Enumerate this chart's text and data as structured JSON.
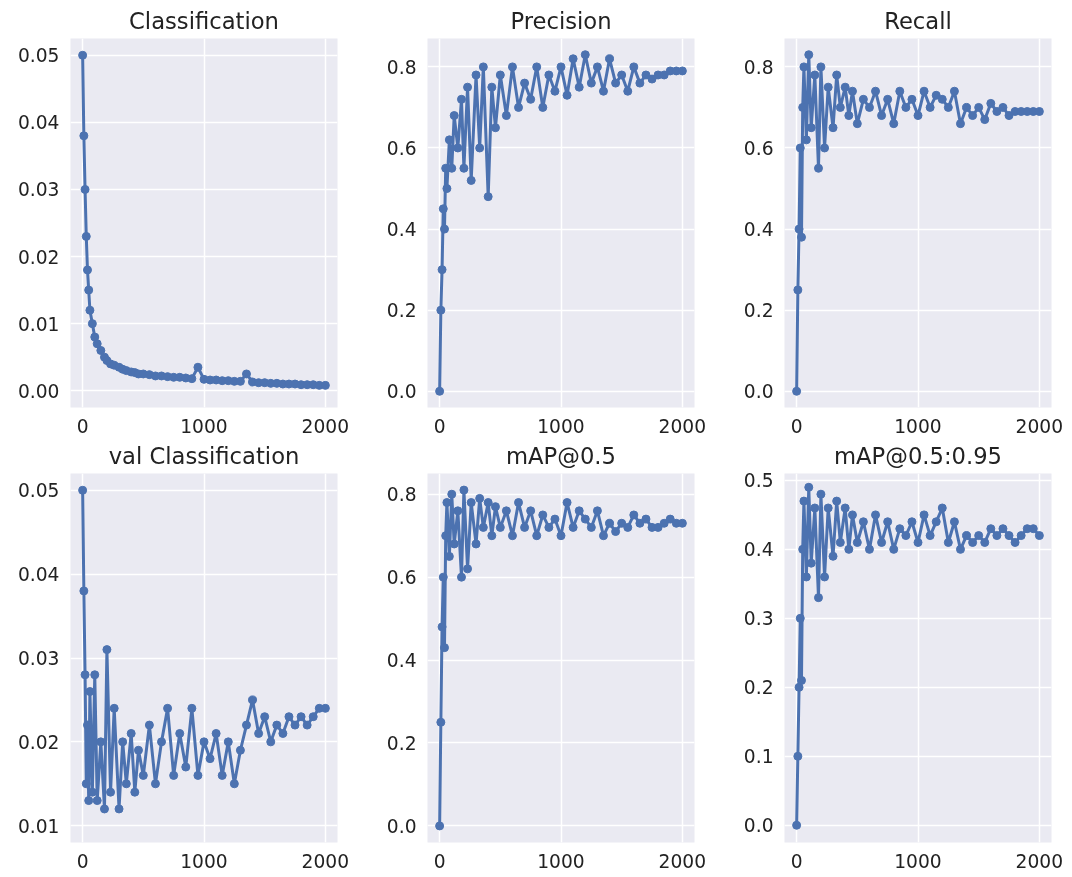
{
  "chart_data": [
    {
      "type": "line",
      "title": "Classification",
      "color": "#4c72b0",
      "marker": "circle",
      "line_style": "solid",
      "grid": true,
      "xlim": [
        -100,
        2100
      ],
      "xticks": [
        0,
        1000,
        2000
      ],
      "ylim": [
        -0.0025,
        0.0525
      ],
      "yticks": [
        {
          "value": 0,
          "label": "0.00"
        },
        {
          "value": 0.01,
          "label": "0.01"
        },
        {
          "value": 0.02,
          "label": "0.02"
        },
        {
          "value": 0.03,
          "label": "0.03"
        },
        {
          "value": 0.04,
          "label": "0.04"
        },
        {
          "value": 0.05,
          "label": "0.05"
        }
      ],
      "x": [
        0,
        10,
        20,
        30,
        40,
        50,
        60,
        80,
        100,
        120,
        150,
        180,
        200,
        230,
        260,
        300,
        330,
        360,
        400,
        430,
        460,
        500,
        550,
        600,
        650,
        700,
        750,
        800,
        850,
        900,
        950,
        1000,
        1050,
        1100,
        1150,
        1200,
        1250,
        1300,
        1350,
        1400,
        1450,
        1500,
        1550,
        1600,
        1650,
        1700,
        1750,
        1800,
        1850,
        1900,
        1950,
        2000
      ],
      "values": [
        0.05,
        0.038,
        0.03,
        0.023,
        0.018,
        0.015,
        0.012,
        0.01,
        0.008,
        0.007,
        0.006,
        0.005,
        0.0045,
        0.004,
        0.0038,
        0.0035,
        0.0032,
        0.003,
        0.0028,
        0.0027,
        0.0025,
        0.0025,
        0.0024,
        0.0022,
        0.0022,
        0.0021,
        0.002,
        0.002,
        0.0019,
        0.0018,
        0.0035,
        0.0017,
        0.0016,
        0.0016,
        0.0015,
        0.0015,
        0.0014,
        0.0014,
        0.0025,
        0.0013,
        0.0012,
        0.0012,
        0.0011,
        0.0011,
        0.001,
        0.001,
        0.001,
        0.0009,
        0.0009,
        0.0009,
        0.0008,
        0.0008
      ]
    },
    {
      "type": "line",
      "title": "Precision",
      "color": "#4c72b0",
      "marker": "circle",
      "line_style": "solid",
      "grid": true,
      "xlim": [
        -100,
        2100
      ],
      "xticks": [
        0,
        1000,
        2000
      ],
      "ylim": [
        -0.04,
        0.87
      ],
      "yticks": [
        {
          "value": 0,
          "label": "0.0"
        },
        0.2,
        0.4,
        0.6,
        0.8
      ],
      "x": [
        0,
        10,
        20,
        30,
        40,
        50,
        60,
        80,
        100,
        120,
        150,
        180,
        200,
        230,
        260,
        300,
        330,
        360,
        400,
        430,
        460,
        500,
        550,
        600,
        650,
        700,
        750,
        800,
        850,
        900,
        950,
        1000,
        1050,
        1100,
        1150,
        1200,
        1250,
        1300,
        1350,
        1400,
        1450,
        1500,
        1550,
        1600,
        1650,
        1700,
        1750,
        1800,
        1850,
        1900,
        1950,
        2000
      ],
      "values": [
        0.0,
        0.2,
        0.3,
        0.45,
        0.4,
        0.55,
        0.5,
        0.62,
        0.55,
        0.68,
        0.6,
        0.72,
        0.55,
        0.75,
        0.52,
        0.78,
        0.6,
        0.8,
        0.48,
        0.75,
        0.65,
        0.78,
        0.68,
        0.8,
        0.7,
        0.76,
        0.72,
        0.8,
        0.7,
        0.78,
        0.74,
        0.8,
        0.73,
        0.82,
        0.75,
        0.83,
        0.76,
        0.8,
        0.74,
        0.82,
        0.76,
        0.78,
        0.74,
        0.8,
        0.76,
        0.78,
        0.77,
        0.78,
        0.78,
        0.79,
        0.79,
        0.79
      ]
    },
    {
      "type": "line",
      "title": "Recall",
      "color": "#4c72b0",
      "marker": "circle",
      "line_style": "solid",
      "grid": true,
      "xlim": [
        -100,
        2100
      ],
      "xticks": [
        0,
        1000,
        2000
      ],
      "ylim": [
        -0.04,
        0.87
      ],
      "yticks": [
        {
          "value": 0,
          "label": "0.0"
        },
        0.2,
        0.4,
        0.6,
        0.8
      ],
      "x": [
        0,
        10,
        20,
        30,
        40,
        50,
        60,
        80,
        100,
        120,
        150,
        180,
        200,
        230,
        260,
        300,
        330,
        360,
        400,
        430,
        460,
        500,
        550,
        600,
        650,
        700,
        750,
        800,
        850,
        900,
        950,
        1000,
        1050,
        1100,
        1150,
        1200,
        1250,
        1300,
        1350,
        1400,
        1450,
        1500,
        1550,
        1600,
        1650,
        1700,
        1750,
        1800,
        1850,
        1900,
        1950,
        2000
      ],
      "values": [
        0.0,
        0.25,
        0.4,
        0.6,
        0.38,
        0.7,
        0.8,
        0.62,
        0.83,
        0.65,
        0.78,
        0.55,
        0.8,
        0.6,
        0.75,
        0.65,
        0.78,
        0.7,
        0.75,
        0.68,
        0.74,
        0.66,
        0.72,
        0.7,
        0.74,
        0.68,
        0.72,
        0.66,
        0.74,
        0.7,
        0.72,
        0.68,
        0.74,
        0.7,
        0.73,
        0.72,
        0.7,
        0.74,
        0.66,
        0.7,
        0.68,
        0.7,
        0.67,
        0.71,
        0.69,
        0.7,
        0.68,
        0.69,
        0.69,
        0.69,
        0.69,
        0.69
      ]
    },
    {
      "type": "line",
      "title": "val Classification",
      "color": "#4c72b0",
      "marker": "circle",
      "line_style": "solid",
      "grid": true,
      "xlim": [
        -100,
        2100
      ],
      "xticks": [
        0,
        1000,
        2000
      ],
      "ylim": [
        0.008,
        0.052
      ],
      "yticks": [
        0.01,
        0.02,
        0.03,
        0.04,
        0.05
      ],
      "x": [
        0,
        10,
        20,
        30,
        40,
        50,
        60,
        80,
        100,
        120,
        150,
        180,
        200,
        230,
        260,
        300,
        330,
        360,
        400,
        430,
        460,
        500,
        550,
        600,
        650,
        700,
        750,
        800,
        850,
        900,
        950,
        1000,
        1050,
        1100,
        1150,
        1200,
        1250,
        1300,
        1350,
        1400,
        1450,
        1500,
        1550,
        1600,
        1650,
        1700,
        1750,
        1800,
        1850,
        1900,
        1950,
        2000
      ],
      "values": [
        0.05,
        0.038,
        0.028,
        0.015,
        0.022,
        0.013,
        0.026,
        0.014,
        0.028,
        0.013,
        0.02,
        0.012,
        0.031,
        0.014,
        0.024,
        0.012,
        0.02,
        0.015,
        0.021,
        0.014,
        0.019,
        0.016,
        0.022,
        0.015,
        0.02,
        0.024,
        0.016,
        0.021,
        0.017,
        0.024,
        0.016,
        0.02,
        0.018,
        0.021,
        0.016,
        0.02,
        0.015,
        0.019,
        0.022,
        0.025,
        0.021,
        0.023,
        0.02,
        0.022,
        0.021,
        0.023,
        0.022,
        0.023,
        0.022,
        0.023,
        0.024,
        0.024
      ]
    },
    {
      "type": "line",
      "title": "mAP@0.5",
      "color": "#4c72b0",
      "marker": "circle",
      "line_style": "solid",
      "grid": true,
      "xlim": [
        -100,
        2100
      ],
      "xticks": [
        0,
        1000,
        2000
      ],
      "ylim": [
        -0.04,
        0.85
      ],
      "yticks": [
        {
          "value": 0,
          "label": "0.0"
        },
        0.2,
        0.4,
        0.6,
        0.8
      ],
      "x": [
        0,
        10,
        20,
        30,
        40,
        50,
        60,
        80,
        100,
        120,
        150,
        180,
        200,
        230,
        260,
        300,
        330,
        360,
        400,
        430,
        460,
        500,
        550,
        600,
        650,
        700,
        750,
        800,
        850,
        900,
        950,
        1000,
        1050,
        1100,
        1150,
        1200,
        1250,
        1300,
        1350,
        1400,
        1450,
        1500,
        1550,
        1600,
        1650,
        1700,
        1750,
        1800,
        1850,
        1900,
        1950,
        2000
      ],
      "values": [
        0.0,
        0.25,
        0.48,
        0.6,
        0.43,
        0.7,
        0.78,
        0.65,
        0.8,
        0.68,
        0.76,
        0.6,
        0.81,
        0.62,
        0.78,
        0.68,
        0.79,
        0.72,
        0.78,
        0.7,
        0.77,
        0.72,
        0.76,
        0.7,
        0.78,
        0.72,
        0.76,
        0.7,
        0.75,
        0.72,
        0.74,
        0.7,
        0.78,
        0.72,
        0.76,
        0.74,
        0.72,
        0.76,
        0.7,
        0.73,
        0.71,
        0.73,
        0.72,
        0.75,
        0.73,
        0.74,
        0.72,
        0.72,
        0.73,
        0.74,
        0.73,
        0.73
      ]
    },
    {
      "type": "line",
      "title": "mAP@0.5:0.95",
      "color": "#4c72b0",
      "marker": "circle",
      "line_style": "solid",
      "grid": true,
      "xlim": [
        -100,
        2100
      ],
      "xticks": [
        0,
        1000,
        2000
      ],
      "ylim": [
        -0.025,
        0.51
      ],
      "yticks": [
        {
          "value": 0,
          "label": "0.0"
        },
        0.1,
        0.2,
        0.3,
        0.4,
        0.5
      ],
      "x": [
        0,
        10,
        20,
        30,
        40,
        50,
        60,
        80,
        100,
        120,
        150,
        180,
        200,
        230,
        260,
        300,
        330,
        360,
        400,
        430,
        460,
        500,
        550,
        600,
        650,
        700,
        750,
        800,
        850,
        900,
        950,
        1000,
        1050,
        1100,
        1150,
        1200,
        1250,
        1300,
        1350,
        1400,
        1450,
        1500,
        1550,
        1600,
        1650,
        1700,
        1750,
        1800,
        1850,
        1900,
        1950,
        2000
      ],
      "values": [
        0.0,
        0.1,
        0.2,
        0.3,
        0.21,
        0.4,
        0.47,
        0.36,
        0.49,
        0.38,
        0.46,
        0.33,
        0.48,
        0.36,
        0.46,
        0.39,
        0.47,
        0.41,
        0.46,
        0.4,
        0.45,
        0.41,
        0.44,
        0.4,
        0.45,
        0.41,
        0.44,
        0.4,
        0.43,
        0.42,
        0.44,
        0.41,
        0.45,
        0.42,
        0.44,
        0.46,
        0.41,
        0.44,
        0.4,
        0.42,
        0.41,
        0.42,
        0.41,
        0.43,
        0.42,
        0.43,
        0.42,
        0.41,
        0.42,
        0.43,
        0.43,
        0.42
      ]
    }
  ]
}
